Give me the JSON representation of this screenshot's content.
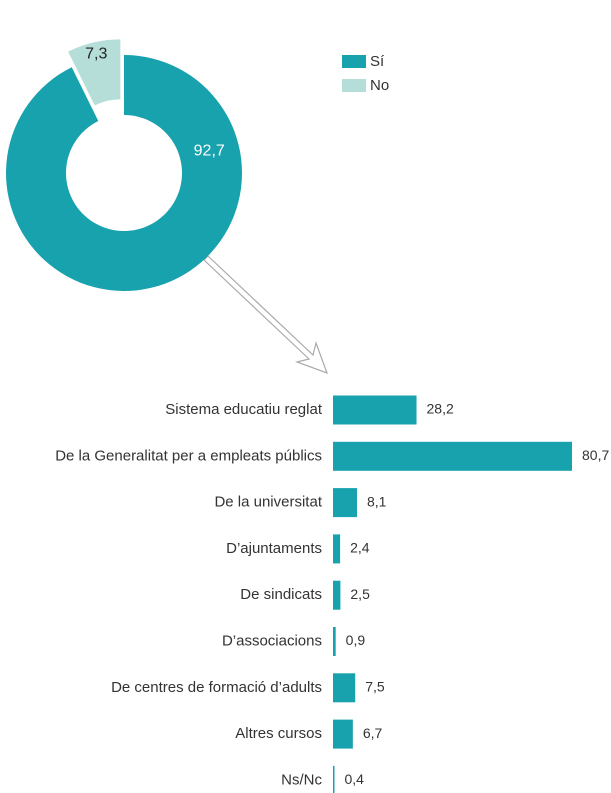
{
  "chart_data": [
    {
      "type": "donut",
      "categories": [
        "Sí",
        "No"
      ],
      "values": [
        92.7,
        7.3
      ],
      "value_labels": [
        "92,7",
        "7,3"
      ],
      "colors": [
        "#17a2ad",
        "#b5ded9"
      ],
      "legend": "top-right"
    },
    {
      "type": "hbar",
      "categories": [
        "Sistema educatiu reglat",
        "De la Generalitat per a empleats públics",
        "De la universitat",
        "D’ajuntaments",
        "De sindicats",
        "D’associacions",
        "De centres de formació d’adults",
        "Altres cursos",
        "Ns/Nc"
      ],
      "values": [
        28.2,
        80.7,
        8.1,
        2.4,
        2.5,
        0.9,
        7.5,
        6.7,
        0.4
      ],
      "value_labels": [
        "28,2",
        "80,7",
        "8,1",
        "2,4",
        "2,5",
        "0,9",
        "7,5",
        "6,7",
        "0,4"
      ],
      "color": "#17a2ad"
    }
  ]
}
